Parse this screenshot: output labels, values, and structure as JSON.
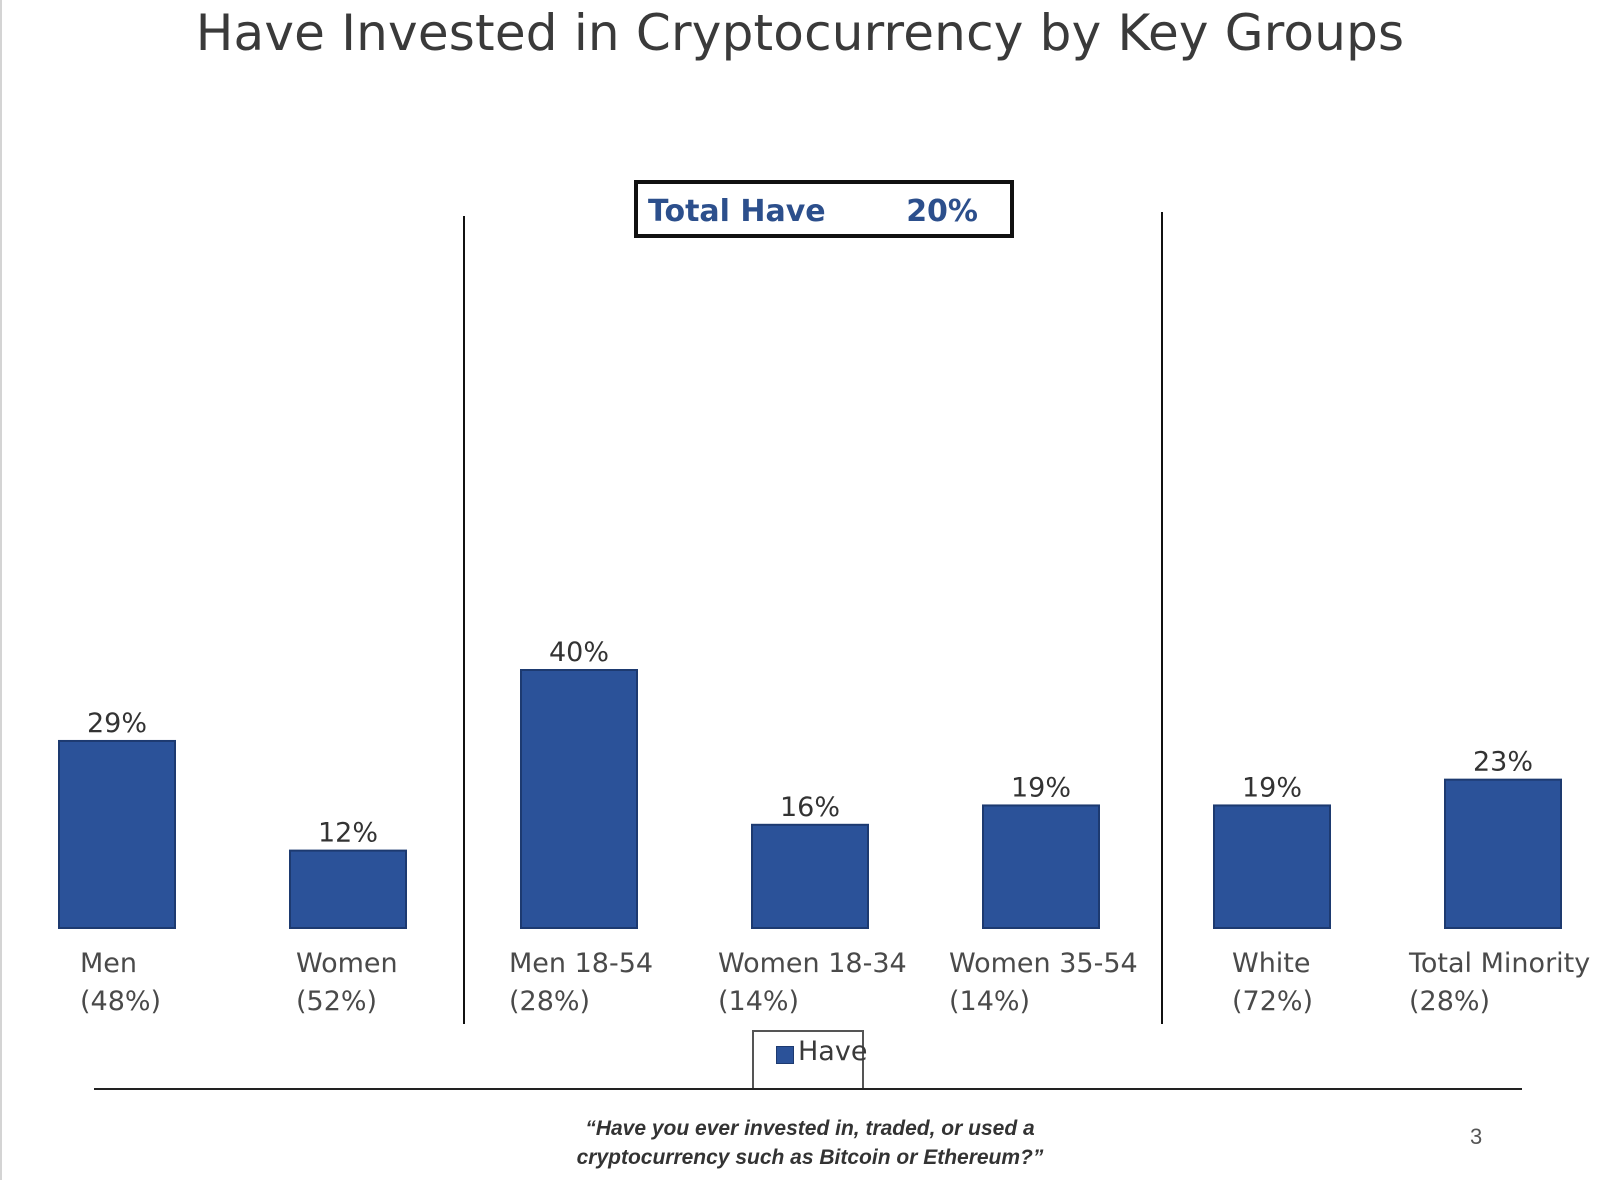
{
  "page": {
    "title": "Have Invested in Cryptocurrency by Key Groups",
    "total_label": "Total Have",
    "total_value": "20%",
    "question_line1": "“Have you ever invested in, traded, or used a",
    "question_line2": "cryptocurrency such as Bitcoin or Ethereum?”",
    "page_number": "3"
  },
  "chart_data": {
    "type": "bar",
    "title": "Have Invested in Cryptocurrency by Key Groups",
    "xlabel": "",
    "ylabel": "",
    "ylim": [
      0,
      100
    ],
    "grid": false,
    "legend": {
      "position": "bottom-center",
      "entries": [
        "Have"
      ]
    },
    "series": [
      {
        "name": "Have",
        "color": "#2b5299",
        "values": [
          29,
          12,
          40,
          16,
          19,
          19,
          23
        ]
      }
    ],
    "value_labels": [
      "29%",
      "12%",
      "40%",
      "16%",
      "19%",
      "19%",
      "23%"
    ],
    "categories": [
      {
        "name": "Men",
        "sub": "(48%)"
      },
      {
        "name": "Women",
        "sub": "(52%)"
      },
      {
        "name": "Men 18-54",
        "sub": "(28%)"
      },
      {
        "name": "Women 18-34",
        "sub": "(14%)"
      },
      {
        "name": "Women 35-54",
        "sub": "(14%)"
      },
      {
        "name": "White",
        "sub": "(72%)"
      },
      {
        "name": "Total Minority",
        "sub": "(28%)"
      }
    ],
    "group_dividers_after_category_index": [
      1,
      4
    ]
  }
}
